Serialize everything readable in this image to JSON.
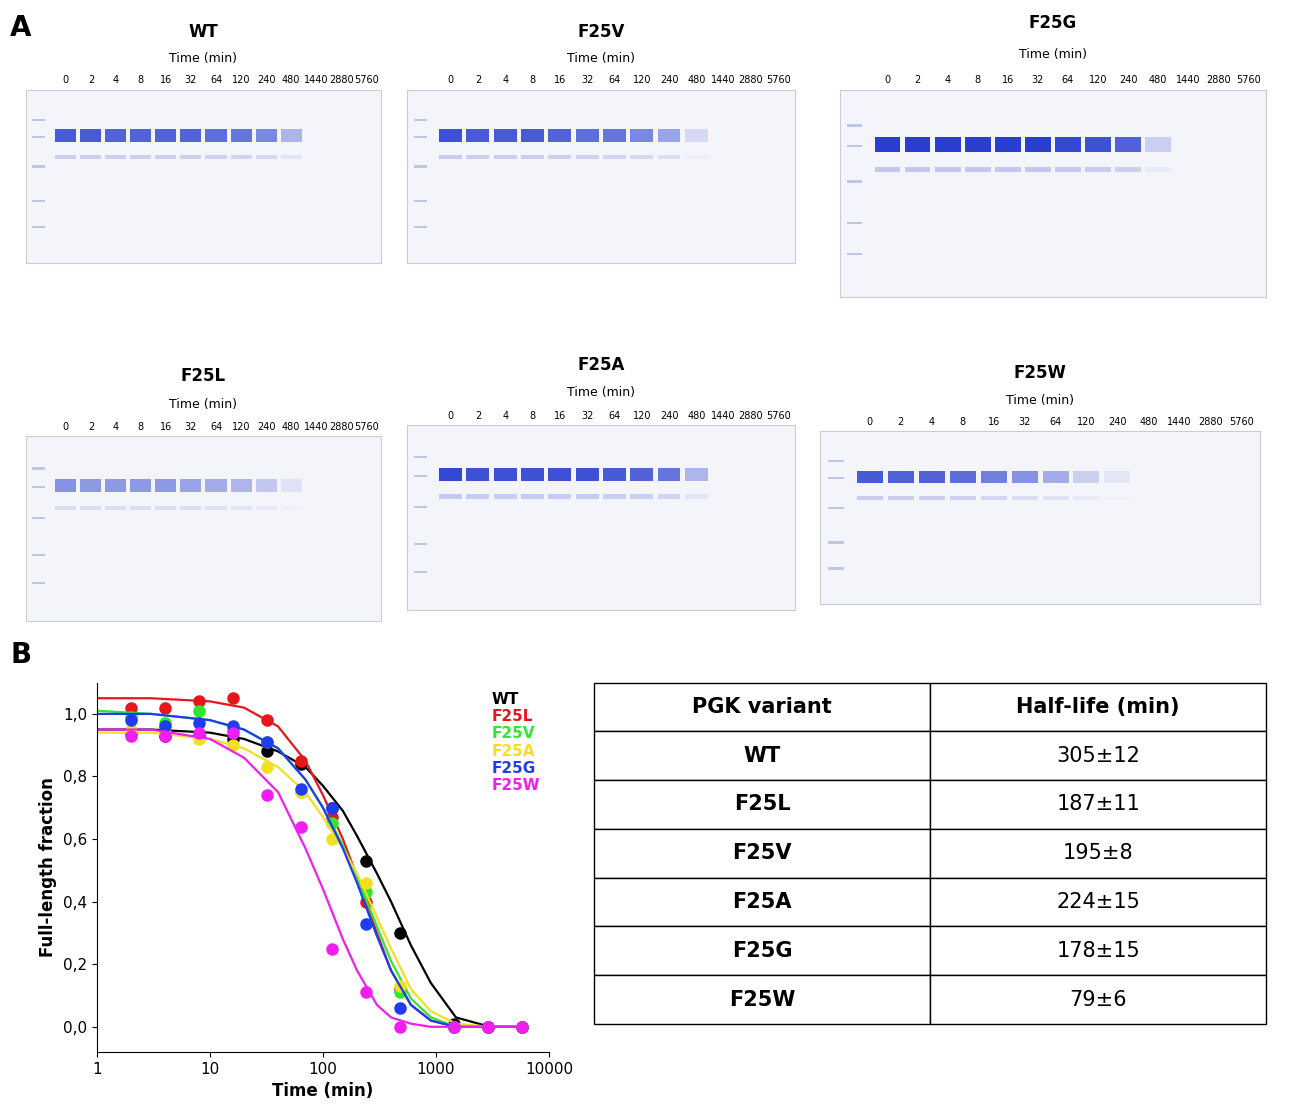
{
  "panel_labels": [
    "A",
    "B"
  ],
  "gels": [
    {
      "title": "WT",
      "xlabel": "Time (min)",
      "lanes": [
        "0",
        "2",
        "4",
        "8",
        "16",
        "32",
        "64",
        "120",
        "240",
        "480",
        "1440",
        "2880",
        "5760"
      ],
      "band_intensity": [
        0.85,
        0.85,
        0.8,
        0.8,
        0.8,
        0.8,
        0.75,
        0.7,
        0.6,
        0.35,
        0,
        0,
        0
      ]
    },
    {
      "title": "F25V",
      "xlabel": "Time (min)",
      "lanes": [
        "0",
        "2",
        "4",
        "8",
        "16",
        "32",
        "64",
        "120",
        "240",
        "480",
        "1440",
        "2880",
        "5760"
      ],
      "band_intensity": [
        0.9,
        0.85,
        0.85,
        0.85,
        0.8,
        0.75,
        0.7,
        0.6,
        0.45,
        0.15,
        0,
        0,
        0
      ]
    },
    {
      "title": "F25G",
      "xlabel": "Time (min)",
      "lanes": [
        "0",
        "2",
        "4",
        "8",
        "16",
        "32",
        "64",
        "120",
        "240",
        "480",
        "1440",
        "2880",
        "5760"
      ],
      "band_intensity": [
        1,
        1,
        1,
        1,
        1,
        1,
        0.95,
        0.9,
        0.8,
        0.2,
        0,
        0,
        0
      ]
    },
    {
      "title": "F25L",
      "xlabel": "Time (min)",
      "lanes": [
        "0",
        "2",
        "4",
        "8",
        "16",
        "32",
        "64",
        "120",
        "240",
        "480",
        "1440",
        "2880",
        "5760"
      ],
      "band_intensity": [
        0.55,
        0.5,
        0.5,
        0.5,
        0.5,
        0.45,
        0.4,
        0.35,
        0.25,
        0.1,
        0,
        0,
        0
      ]
    },
    {
      "title": "F25A",
      "xlabel": "Time (min)",
      "lanes": [
        "0",
        "2",
        "4",
        "8",
        "16",
        "32",
        "64",
        "120",
        "240",
        "480",
        "1440",
        "2880",
        "5760"
      ],
      "band_intensity": [
        0.95,
        0.9,
        0.9,
        0.9,
        0.9,
        0.9,
        0.85,
        0.8,
        0.7,
        0.35,
        0,
        0,
        0
      ]
    },
    {
      "title": "F25W",
      "xlabel": "Time (min)",
      "lanes": [
        "0",
        "2",
        "4",
        "8",
        "16",
        "32",
        "64",
        "120",
        "240",
        "480",
        "1440",
        "2880",
        "5760"
      ],
      "band_intensity": [
        0.85,
        0.8,
        0.8,
        0.75,
        0.65,
        0.55,
        0.4,
        0.2,
        0.08,
        0,
        0,
        0,
        0
      ]
    }
  ],
  "chart_data": {
    "type": "scatter",
    "x_label": "Time (min)",
    "y_label": "Full-length fraction",
    "log": "x",
    "xlim": [
      1,
      10000
    ],
    "xticks": [
      1,
      10,
      100,
      1000,
      10000
    ],
    "ylim": [
      -0.08,
      1.1
    ],
    "yticks": [
      {
        "value": 0.0,
        "label": "0,0"
      },
      {
        "value": 0.2,
        "label": "0,2"
      },
      {
        "value": 0.4,
        "label": "0,4"
      },
      {
        "value": 0.6,
        "label": "0,6"
      },
      {
        "value": 0.8,
        "label": "0,8"
      },
      {
        "value": 1.0,
        "label": "1,0"
      }
    ],
    "legend": "upper right",
    "marker": "o",
    "x": [
      2,
      4,
      8,
      16,
      32,
      64,
      120,
      240,
      480,
      1440,
      2880,
      5760
    ],
    "fit_x": [
      1,
      3,
      10,
      20,
      40,
      70,
      100,
      150,
      200,
      300,
      400,
      600,
      900,
      1500,
      3000,
      6000
    ],
    "series": [
      {
        "name": "WT",
        "color": "#000000",
        "values": [
          0.94,
          0.93,
          0.93,
          0.92,
          0.88,
          0.84,
          0.7,
          0.53,
          0.3,
          0.01,
          0.0,
          0.0
        ],
        "fit": [
          0.95,
          0.95,
          0.94,
          0.92,
          0.88,
          0.83,
          0.77,
          0.69,
          0.61,
          0.49,
          0.4,
          0.26,
          0.14,
          0.03,
          0.0,
          0.0
        ]
      },
      {
        "name": "F25L",
        "color": "#e8161b",
        "values": [
          1.02,
          1.02,
          1.04,
          1.05,
          0.98,
          0.85,
          0.67,
          0.4,
          0.12,
          0.0,
          0.0,
          0.0
        ],
        "fit": [
          1.05,
          1.05,
          1.04,
          1.02,
          0.96,
          0.85,
          0.74,
          0.6,
          0.48,
          0.3,
          0.18,
          0.07,
          0.02,
          0.0,
          0.0,
          0.0
        ]
      },
      {
        "name": "F25V",
        "color": "#2ee82e",
        "values": [
          0.99,
          0.97,
          1.01,
          0.95,
          0.91,
          0.75,
          0.65,
          0.43,
          0.11,
          0.0,
          0.0,
          0.0
        ],
        "fit": [
          1.01,
          1.0,
          0.98,
          0.95,
          0.89,
          0.79,
          0.7,
          0.58,
          0.48,
          0.32,
          0.21,
          0.09,
          0.03,
          0.0,
          0.0,
          0.0
        ]
      },
      {
        "name": "F25A",
        "color": "#f2e020",
        "values": [
          0.95,
          0.94,
          0.92,
          0.9,
          0.83,
          0.75,
          0.6,
          0.46,
          0.13,
          0.0,
          0.0,
          0.0
        ],
        "fit": [
          0.94,
          0.94,
          0.92,
          0.89,
          0.83,
          0.75,
          0.67,
          0.57,
          0.49,
          0.35,
          0.25,
          0.12,
          0.05,
          0.01,
          0.0,
          0.0
        ]
      },
      {
        "name": "F25G",
        "color": "#1e3cf0",
        "values": [
          0.98,
          0.96,
          0.97,
          0.96,
          0.91,
          0.76,
          0.7,
          0.33,
          0.06,
          0.0,
          0.0,
          0.0
        ],
        "fit": [
          1.0,
          1.0,
          0.98,
          0.95,
          0.89,
          0.79,
          0.7,
          0.57,
          0.46,
          0.29,
          0.18,
          0.07,
          0.02,
          0.0,
          0.0,
          0.0
        ]
      },
      {
        "name": "F25W",
        "color": "#f01ef0",
        "values": [
          0.93,
          0.93,
          0.94,
          0.94,
          0.74,
          0.64,
          0.25,
          0.11,
          0.0,
          0.0,
          0.0,
          0.0
        ],
        "fit": [
          0.95,
          0.95,
          0.92,
          0.86,
          0.75,
          0.57,
          0.44,
          0.28,
          0.18,
          0.07,
          0.03,
          0.01,
          0.0,
          0.0,
          0.0,
          0.0
        ]
      }
    ]
  },
  "table": {
    "header": [
      "PGK variant",
      "Half-life (min)"
    ],
    "rows": [
      [
        "WT",
        "305±12"
      ],
      [
        "F25L",
        "187±11"
      ],
      [
        "F25V",
        "195±8"
      ],
      [
        "F25A",
        "224±15"
      ],
      [
        "F25G",
        "178±15"
      ],
      [
        "F25W",
        "79±6"
      ]
    ]
  }
}
